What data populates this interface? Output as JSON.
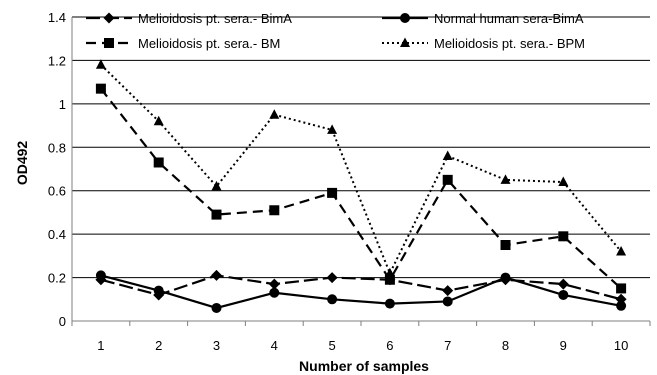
{
  "chart_data": {
    "type": "line",
    "title": "",
    "xlabel": "Number of samples",
    "ylabel": "OD492",
    "categories": [
      "1",
      "2",
      "3",
      "4",
      "5",
      "6",
      "7",
      "8",
      "9",
      "10"
    ],
    "ylim": [
      0,
      1.4
    ],
    "yticks": [
      "0",
      "0.2",
      "0.4",
      "0.6",
      "0.8",
      "1",
      "1.2",
      "1.4"
    ],
    "grid": "horizontal",
    "legend_position": "top",
    "series": [
      {
        "name": "Melioidosis pt. sera.- BimA",
        "marker": "diamond",
        "line": "long-dash",
        "values": [
          0.19,
          0.12,
          0.21,
          0.17,
          0.2,
          0.19,
          0.14,
          0.19,
          0.17,
          0.1
        ]
      },
      {
        "name": "Normal human sera-BimA",
        "marker": "circle",
        "line": "solid",
        "values": [
          0.21,
          0.14,
          0.06,
          0.13,
          0.1,
          0.08,
          0.09,
          0.2,
          0.12,
          0.07
        ]
      },
      {
        "name": "Melioidosis pt. sera.- BM",
        "marker": "square",
        "line": "dash",
        "values": [
          1.07,
          0.73,
          0.49,
          0.51,
          0.59,
          0.19,
          0.65,
          0.35,
          0.39,
          0.15
        ]
      },
      {
        "name": "Melioidosis pt. sera.- BPM",
        "marker": "triangle",
        "line": "dotted",
        "values": [
          1.18,
          0.92,
          0.62,
          0.95,
          0.88,
          0.22,
          0.76,
          0.65,
          0.64,
          0.32
        ]
      }
    ]
  }
}
